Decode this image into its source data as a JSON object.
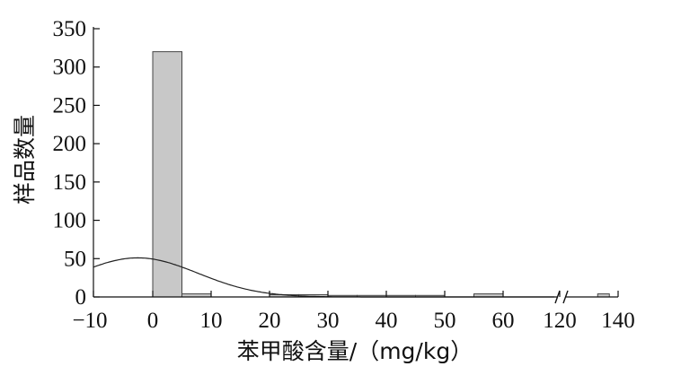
{
  "chart_data": {
    "type": "bar",
    "subtype": "histogram with fitted normal curve and broken x-axis",
    "xlabel": "苯甲酸含量/（mg/kg）",
    "ylabel": "样品数量",
    "ylim": [
      0,
      350
    ],
    "yticks": [
      "0",
      "50",
      "100",
      "150",
      "200",
      "250",
      "300",
      "350"
    ],
    "xticks": [
      "−10",
      "0",
      "10",
      "20",
      "30",
      "40",
      "50",
      "60",
      "120",
      "140"
    ],
    "grid": false,
    "axis_break_between": [
      "60",
      "120"
    ],
    "bar_fill": "#c8c8c8",
    "bar_stroke": "#444444",
    "bins": [
      {
        "from": 0,
        "to": 5,
        "count": 320
      },
      {
        "from": 5,
        "to": 10,
        "count": 4
      },
      {
        "from": 20,
        "to": 25,
        "count": 3
      },
      {
        "from": 25,
        "to": 30,
        "count": 3
      },
      {
        "from": 30,
        "to": 35,
        "count": 2
      },
      {
        "from": 35,
        "to": 40,
        "count": 2
      },
      {
        "from": 40,
        "to": 45,
        "count": 2
      },
      {
        "from": 45,
        "to": 50,
        "count": 2
      },
      {
        "from": 55,
        "to": 60,
        "count": 4
      },
      {
        "from": 133,
        "to": 137,
        "count": 4
      }
    ],
    "fitted_curve": {
      "type": "normal",
      "mean": 2.5,
      "sd": 17,
      "peak": 51,
      "x_range": [
        -10,
        120
      ]
    }
  }
}
